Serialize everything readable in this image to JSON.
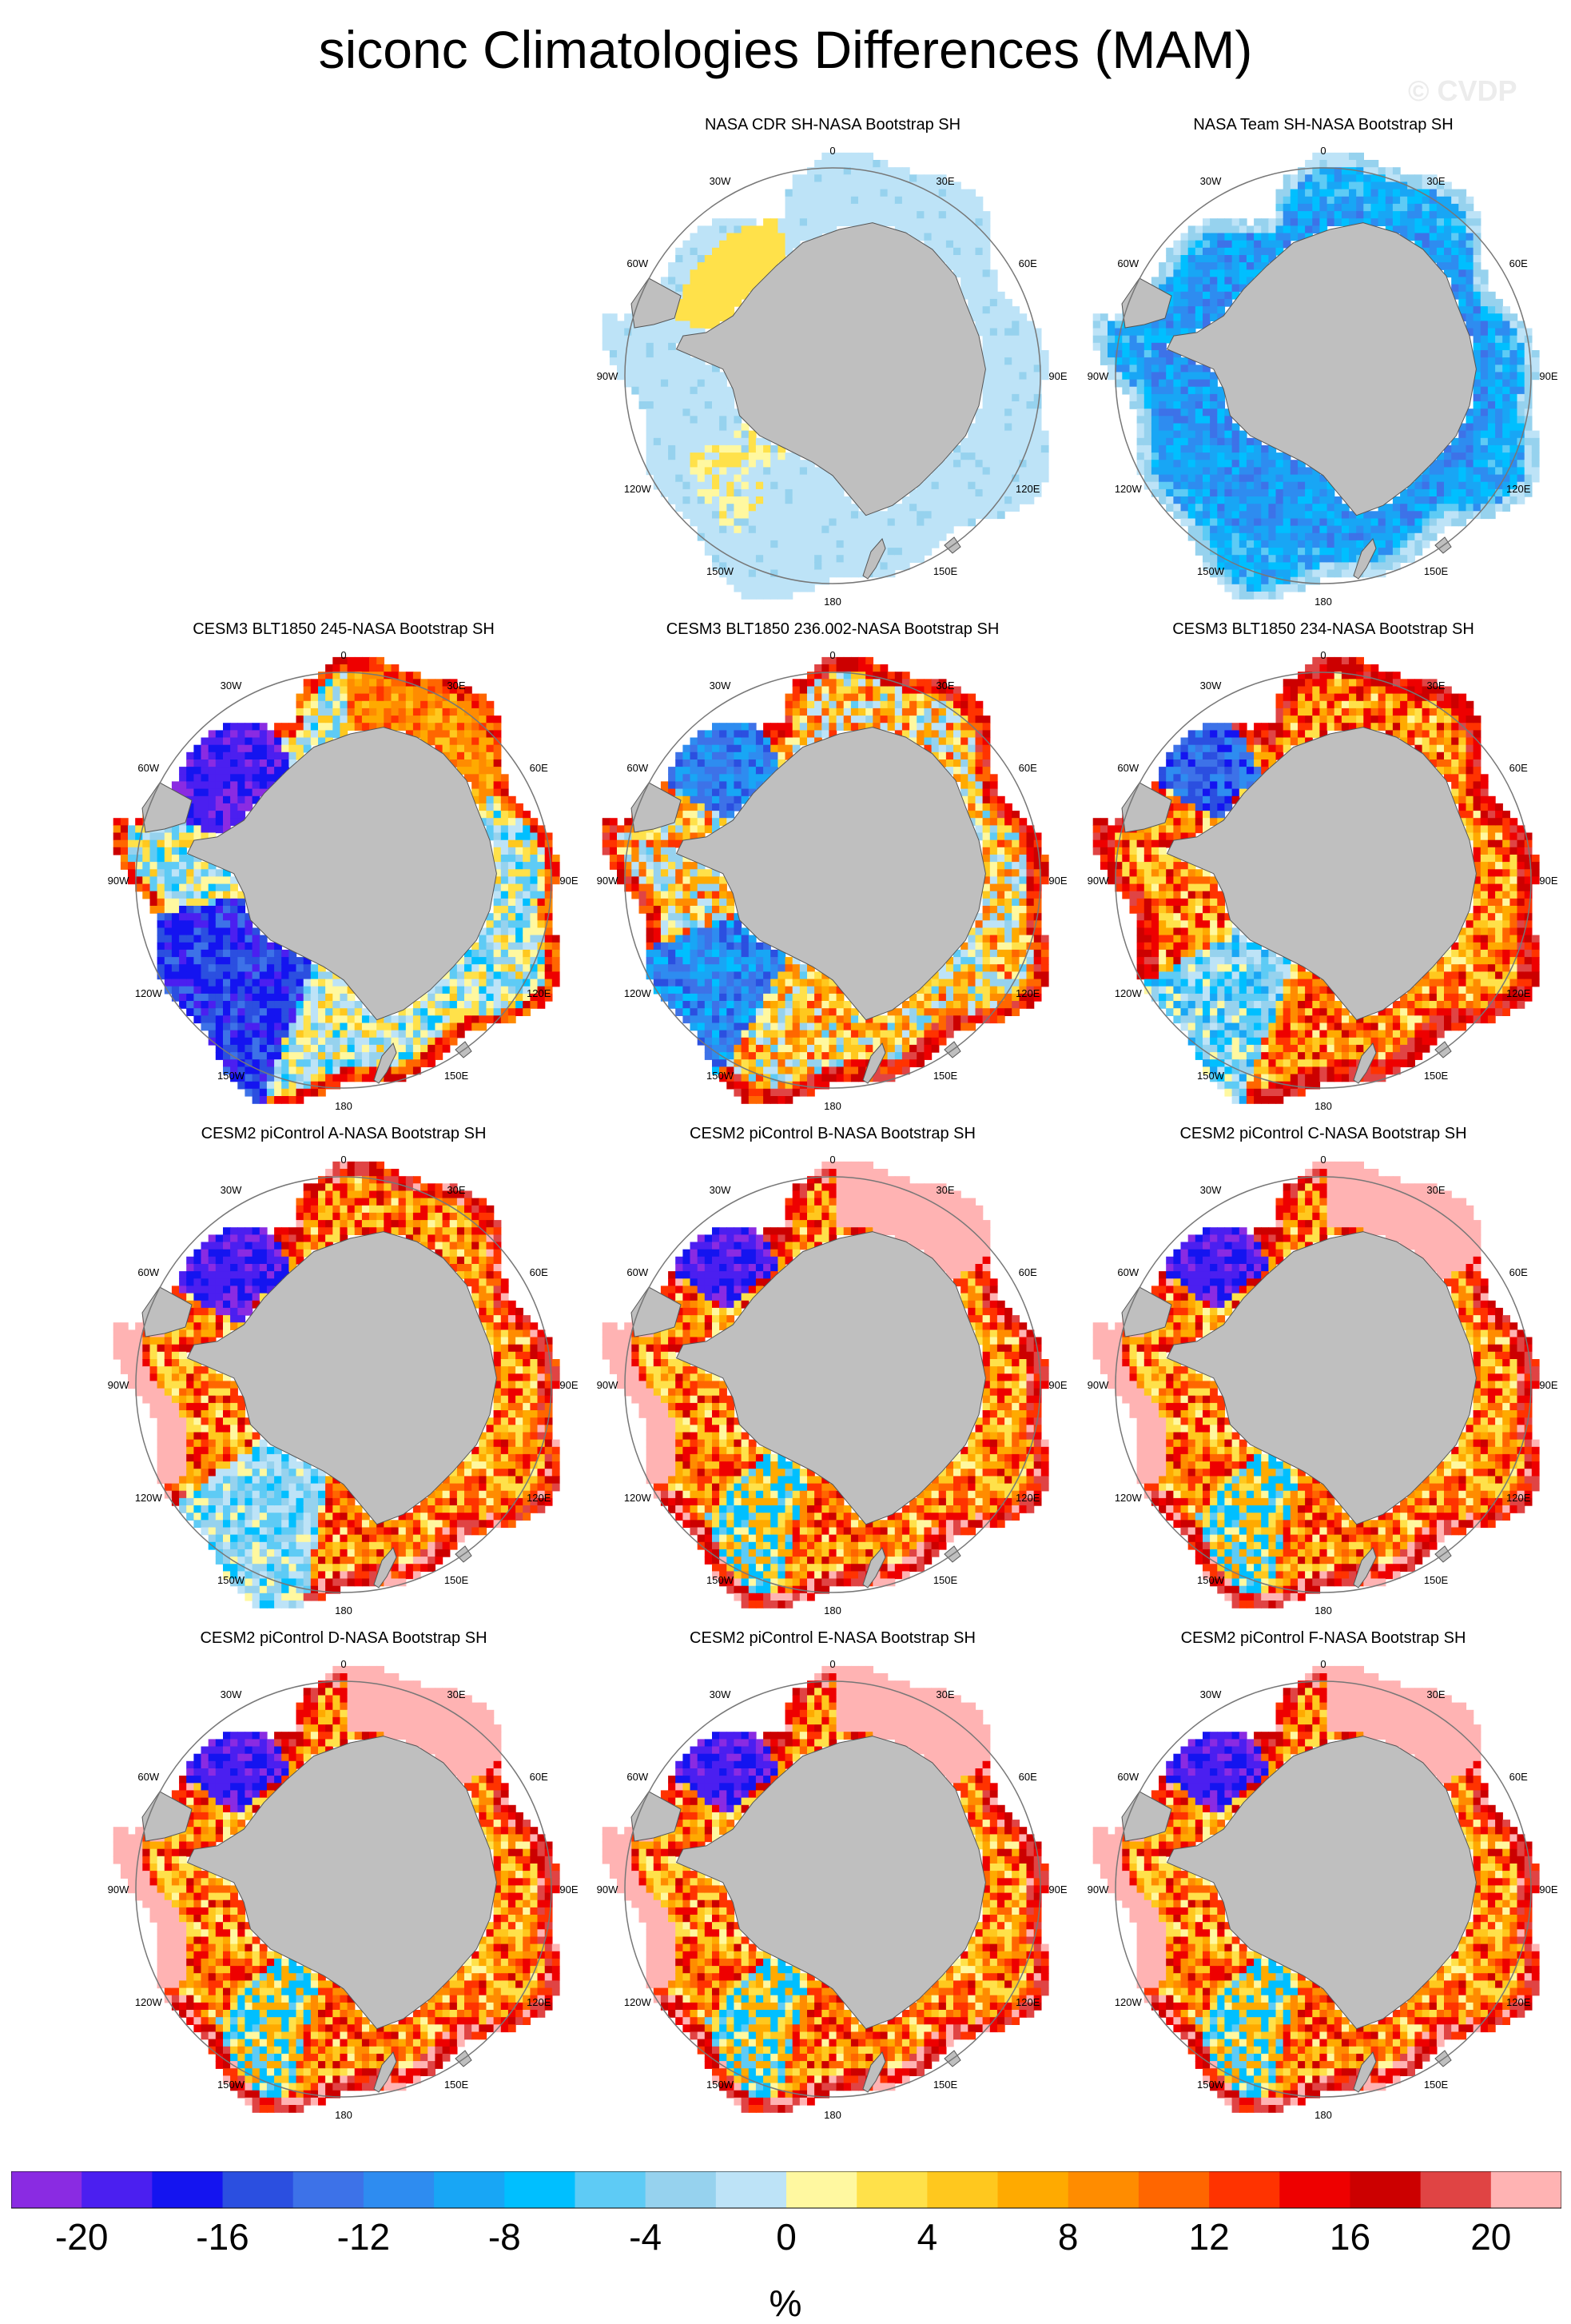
{
  "title": "siconc Climatologies Differences (MAM)",
  "watermark": "© CVDP",
  "colors": {
    "land": "#bfbfbf",
    "circle": "#777777"
  },
  "longitude_labels": [
    "0",
    "30E",
    "60E",
    "90E",
    "120E",
    "150E",
    "180",
    "150W",
    "120W",
    "90W",
    "60W",
    "30W"
  ],
  "panels": [
    {
      "title": "NASA CDR SH-NASA Bootstrap SH",
      "pattern": "cdr"
    },
    {
      "title": "NASA Team SH-NASA Bootstrap SH",
      "pattern": "team"
    },
    {
      "title": "CESM3 BLT1850 245-NASA Bootstrap SH",
      "pattern": "blt_cold"
    },
    {
      "title": "CESM3 BLT1850 236.002-NASA Bootstrap SH",
      "pattern": "blt_mixed"
    },
    {
      "title": "CESM3 BLT1850 234-NASA Bootstrap SH",
      "pattern": "blt_warm"
    },
    {
      "title": "CESM2 piControl A-NASA Bootstrap SH",
      "pattern": "pic_a"
    },
    {
      "title": "CESM2 piControl B-NASA Bootstrap SH",
      "pattern": "pic"
    },
    {
      "title": "CESM2 piControl C-NASA Bootstrap SH",
      "pattern": "pic"
    },
    {
      "title": "CESM2 piControl D-NASA Bootstrap SH",
      "pattern": "pic"
    },
    {
      "title": "CESM2 piControl E-NASA Bootstrap SH",
      "pattern": "pic"
    },
    {
      "title": "CESM2 piControl F-NASA Bootstrap SH",
      "pattern": "pic"
    }
  ],
  "colorbar": {
    "levels": [
      -22,
      -20,
      -18,
      -16,
      -14,
      -12,
      -10,
      -8,
      -6,
      -4,
      -2,
      0,
      2,
      4,
      6,
      8,
      10,
      12,
      14,
      16,
      18,
      20,
      22
    ],
    "colors": [
      "#8a2be2",
      "#4b1ff0",
      "#1414f0",
      "#2b4fe0",
      "#3d72e8",
      "#2e8cf0",
      "#18a6f5",
      "#00bfff",
      "#5ecbf5",
      "#96d2ee",
      "#bde3f7",
      "#fff8a0",
      "#ffe14a",
      "#ffc81e",
      "#ffaa00",
      "#ff8c00",
      "#ff6600",
      "#ff3300",
      "#ee0000",
      "#cc0000",
      "#e04444",
      "#ffb3b3"
    ],
    "tick_labels": [
      "-20",
      "-16",
      "-12",
      "-8",
      "-4",
      "0",
      "4",
      "8",
      "12",
      "16",
      "20"
    ],
    "unit": "%"
  }
}
